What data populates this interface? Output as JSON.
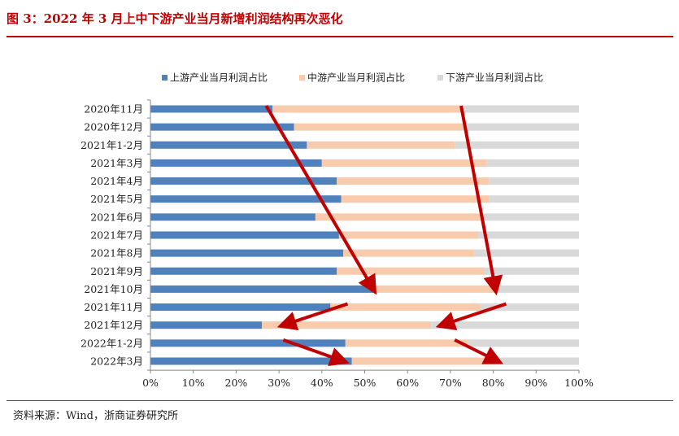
{
  "title": "图 3：2022 年 3 月上中下游产业当月新增利润结构再次恶化",
  "source": "资料来源：Wind，浙商证券研究所",
  "colors": {
    "upstream": "#4f81bd",
    "midstream": "#f9cbad",
    "downstream": "#d9d9d9",
    "arrow": "#c00000",
    "accent": "#c00000"
  },
  "chart_data": {
    "type": "bar",
    "orientation": "horizontal",
    "stacked": true,
    "categories": [
      "2020年11月",
      "2020年12月",
      "2021年1-2月",
      "2021年3月",
      "2021年4月",
      "2021年5月",
      "2021年6月",
      "2021年7月",
      "2021年8月",
      "2021年9月",
      "2021年10月",
      "2021年11月",
      "2021年12月",
      "2022年1-2月",
      "2022年3月"
    ],
    "series": [
      {
        "name": "上游产业当月利润占比",
        "values": [
          28.5,
          33.5,
          36.5,
          40,
          43.5,
          44.5,
          38.5,
          44,
          45,
          43.5,
          52.5,
          42,
          26,
          45.5,
          47
        ]
      },
      {
        "name": "中游产业当月利润占比",
        "values": [
          44,
          39.5,
          34.5,
          38.5,
          35.5,
          34.5,
          38.5,
          32.5,
          30.5,
          34.5,
          28.5,
          35,
          39.5,
          28.5,
          34
        ]
      },
      {
        "name": "下游产业当月利润占比",
        "values": [
          27.5,
          27,
          29,
          21.5,
          21,
          21,
          23,
          23.5,
          24.5,
          22,
          19,
          23,
          34.5,
          26,
          19
        ]
      }
    ],
    "xlim": [
      0,
      100
    ],
    "xticks": [
      "0%",
      "10%",
      "20%",
      "30%",
      "40%",
      "50%",
      "60%",
      "70%",
      "80%",
      "90%",
      "100%"
    ],
    "legend_position": "top",
    "grid": false,
    "annotations": [
      {
        "type": "arrow",
        "from": {
          "category": "2020年11月",
          "value": 27
        },
        "to": {
          "category": "2021年10月",
          "value": 52
        }
      },
      {
        "type": "arrow",
        "from": {
          "category": "2020年11月",
          "value": 72.5
        },
        "to": {
          "category": "2021年10月",
          "value": 80.5
        }
      },
      {
        "type": "arrow",
        "from": {
          "category": "2021年11月",
          "value": 46
        },
        "to": {
          "category": "2021年12月",
          "value": 31
        }
      },
      {
        "type": "arrow",
        "from": {
          "category": "2021年11月",
          "value": 83
        },
        "to": {
          "category": "2021年12月",
          "value": 68
        }
      },
      {
        "type": "arrow",
        "from": {
          "category": "2022年1-2月",
          "value": 31
        },
        "to": {
          "category": "2022年3月",
          "value": 45
        }
      },
      {
        "type": "arrow",
        "from": {
          "category": "2022年1-2月",
          "value": 71
        },
        "to": {
          "category": "2022年3月",
          "value": 81
        }
      }
    ]
  }
}
